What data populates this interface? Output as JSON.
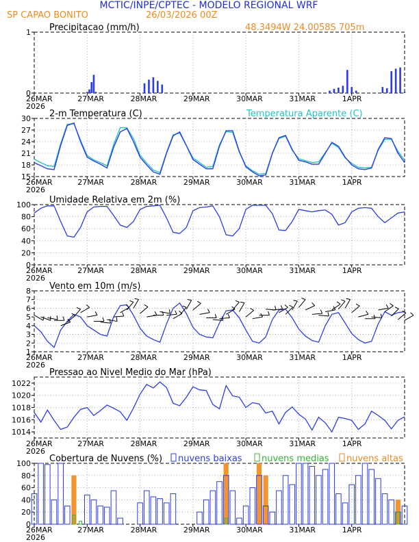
{
  "header": {
    "title": "MCTIC/INPE/CPTEC - MODELO REGIONAL WRF",
    "location": "SP CAPAO BONITO",
    "run": "26/03/2026 00Z",
    "coords": "48.3494W 24.0058S 705m"
  },
  "colors": {
    "title": "#1e2fd6",
    "orange": "#f08a1e",
    "blue": "#2a3bea",
    "cyan": "#21c4c4",
    "green": "#2fb82f",
    "grid": "#9a9a9a",
    "frame": "#000000"
  },
  "time_axis": {
    "labels": [
      "26MAR\n2026",
      "27MAR",
      "28MAR",
      "29MAR",
      "30MAR",
      "31MAR",
      "1APR"
    ],
    "days": 7
  },
  "panels": [
    {
      "id": "precip",
      "title": "Precipitacao (mm/h)",
      "right_label": "48.3494W 24.0058S 705m",
      "ymin": 0,
      "ymax": 1,
      "yticks": [
        "1",
        "0"
      ],
      "ytick_values": [
        1,
        0
      ],
      "legend": []
    },
    {
      "id": "temp",
      "title": "2-m Temperatura (C)",
      "right_label": "Temperatura Aparente (C)",
      "ymin": 15,
      "ymax": 30,
      "yticks": [
        "30",
        "27",
        "24",
        "21",
        "18",
        "15"
      ],
      "ytick_values": [
        30,
        27,
        24,
        21,
        18,
        15
      ],
      "legend": []
    },
    {
      "id": "rh",
      "title": "Umidade Relativa em 2m (%)",
      "right_label": "",
      "ymin": 0,
      "ymax": 100,
      "yticks": [
        "100",
        "80",
        "60",
        "40",
        "20",
        "0"
      ],
      "ytick_values": [
        100,
        80,
        60,
        40,
        20,
        0
      ],
      "legend": []
    },
    {
      "id": "wind",
      "title": "Vento em 10m (m/s)",
      "right_label": "",
      "ymin": 1,
      "ymax": 8,
      "yticks": [
        "8",
        "7",
        "6",
        "5",
        "4",
        "3",
        "2",
        "1"
      ],
      "ytick_values": [
        8,
        7,
        6,
        5,
        4,
        3,
        2,
        1
      ],
      "legend": []
    },
    {
      "id": "pres",
      "title": "Pressao ao Nivel Medio do Mar (hPa)",
      "right_label": "",
      "ymin": 1013,
      "ymax": 1023,
      "yticks": [
        "1022",
        "1020",
        "1018",
        "1016",
        "1014"
      ],
      "ytick_values": [
        1022,
        1020,
        1018,
        1016,
        1014
      ],
      "legend": []
    },
    {
      "id": "cloud",
      "title": "Cobertura de Nuvens (%)",
      "right_label": "",
      "ymin": 0,
      "ymax": 100,
      "yticks": [
        "100",
        "80",
        "60",
        "40",
        "20",
        "0"
      ],
      "ytick_values": [
        100,
        80,
        60,
        40,
        20,
        0
      ],
      "legend": [
        "nuvens baixas",
        "nuvens medias",
        "nuvens altas"
      ]
    }
  ],
  "chart_data": {
    "type": "meteogram",
    "title": "MCTIC/INPE/CPTEC - MODELO REGIONAL WRF",
    "subtitle": "SP CAPAO BONITO 26/03/2026 00Z",
    "time_unit": "hours since 26MAR2026 00Z",
    "hours": [
      0,
      3,
      6,
      9,
      12,
      15,
      18,
      21,
      24,
      27,
      30,
      33,
      36,
      39,
      42,
      45,
      48,
      51,
      54,
      57,
      60,
      63,
      66,
      69,
      72,
      75,
      78,
      81,
      84,
      87,
      90,
      93,
      96,
      99,
      102,
      105,
      108,
      111,
      114,
      117,
      120,
      123,
      126,
      129,
      132,
      135,
      138,
      141,
      144,
      147,
      150,
      153,
      156,
      159,
      162,
      165,
      168
    ],
    "precipitation_mm_h": {
      "hours": [
        10,
        12,
        14,
        16,
        18,
        20,
        22,
        24,
        25,
        26,
        27,
        28,
        29,
        30,
        31,
        32,
        34,
        36,
        38,
        40,
        42,
        44,
        46,
        48,
        50,
        52,
        54,
        56,
        58,
        60,
        62,
        64,
        66,
        68,
        70,
        72,
        74,
        76,
        78,
        80,
        82,
        84,
        86,
        88,
        90,
        92,
        94,
        96,
        98,
        100,
        102,
        104,
        106,
        108,
        110,
        112,
        114,
        116,
        118,
        120,
        122,
        124,
        126,
        128,
        130,
        132,
        134,
        136,
        138,
        140,
        142,
        144,
        146,
        148,
        150,
        152,
        154,
        156,
        158,
        160,
        162,
        164,
        166,
        168
      ],
      "values": [
        0,
        0,
        0,
        0,
        0,
        0,
        0,
        0.02,
        0.06,
        0.18,
        0.3,
        0.02,
        0,
        0,
        0,
        0,
        0,
        0,
        0,
        0,
        0,
        0,
        0,
        0,
        0.16,
        0.22,
        0.26,
        0.2,
        0.14,
        0,
        0,
        0,
        0,
        0,
        0,
        0,
        0,
        0,
        0,
        0,
        0,
        0,
        0,
        0,
        0,
        0,
        0,
        0,
        0,
        0,
        0,
        0,
        0,
        0,
        0,
        0,
        0,
        0,
        0,
        0,
        0,
        0,
        0,
        0,
        0,
        0,
        0.04,
        0.07,
        0.09,
        0.12,
        0.38,
        0.1,
        0.04,
        0,
        0,
        0,
        0,
        0,
        0.1,
        0.08,
        0.36,
        0.4,
        0.42,
        0.02
      ]
    },
    "temperature_c": [
      18.6,
      17.8,
      17.0,
      16.8,
      23.0,
      28.2,
      28.8,
      24.0,
      20.0,
      19.0,
      18.2,
      17.2,
      22.5,
      26.5,
      27.4,
      24.0,
      20.0,
      18.0,
      16.2,
      15.6,
      21.0,
      25.5,
      26.5,
      23.0,
      19.4,
      18.2,
      17.0,
      17.0,
      22.8,
      26.8,
      26.8,
      21.5,
      17.5,
      16.2,
      15.2,
      15.4,
      21.0,
      25.0,
      25.6,
      22.0,
      19.2,
      18.8,
      18.2,
      18.2,
      21.0,
      23.8,
      22.8,
      20.0,
      18.0,
      17.0,
      16.8,
      17.2,
      22.0,
      25.0,
      24.8,
      21.0,
      18.6
    ],
    "apparent_temperature_c": [
      19.5,
      18.6,
      17.8,
      17.6,
      23.5,
      28.5,
      28.6,
      24.4,
      20.4,
      19.3,
      18.6,
      17.8,
      23.2,
      27.6,
      27.6,
      24.8,
      20.5,
      18.5,
      16.7,
      16.0,
      21.2,
      25.8,
      26.2,
      23.0,
      19.8,
      18.6,
      17.4,
      17.6,
      23.2,
      26.6,
      26.4,
      21.3,
      17.8,
      16.5,
      15.6,
      15.8,
      21.0,
      24.8,
      25.4,
      21.8,
      19.6,
      19.1,
      18.6,
      18.8,
      21.2,
      23.6,
      22.5,
      19.8,
      18.4,
      17.4,
      17.2,
      17.4,
      21.8,
      24.6,
      24.6,
      21.5,
      19.2
    ],
    "relative_humidity_pct": [
      86,
      94,
      98,
      98,
      72,
      48,
      46,
      62,
      88,
      96,
      97,
      97,
      82,
      66,
      62,
      72,
      92,
      97,
      98,
      99,
      78,
      54,
      52,
      62,
      90,
      95,
      96,
      98,
      80,
      50,
      48,
      60,
      92,
      99,
      99,
      99,
      85,
      58,
      57,
      72,
      92,
      90,
      88,
      90,
      91,
      84,
      66,
      70,
      88,
      94,
      95,
      94,
      80,
      70,
      78,
      86,
      88
    ],
    "wind_speed_m_s": [
      4.0,
      3.3,
      2.2,
      1.5,
      3.5,
      4.5,
      5.3,
      5.0,
      4.0,
      3.5,
      3.0,
      2.8,
      5.0,
      6.3,
      6.4,
      5.2,
      3.7,
      2.8,
      2.4,
      2.1,
      4.2,
      6.0,
      6.6,
      5.4,
      3.8,
      3.0,
      2.7,
      2.6,
      4.3,
      5.7,
      5.8,
      4.9,
      3.5,
      2.2,
      2.0,
      2.7,
      4.7,
      5.8,
      5.9,
      4.9,
      3.6,
      2.8,
      2.3,
      2.1,
      4.0,
      5.3,
      5.5,
      4.3,
      3.1,
      2.4,
      2.0,
      2.2,
      4.2,
      5.6,
      5.2,
      5.5,
      5.6
    ],
    "wind_barb_y_m_s": [
      5.2,
      5.0,
      4.9,
      4.6,
      4.0,
      4.4,
      5.0,
      5.5,
      5.0,
      4.5,
      4.4,
      4.7,
      5.0,
      5.5,
      5.8,
      6.0,
      5.4,
      5.0,
      5.2,
      5.6,
      5.2,
      4.8,
      5.2,
      5.9,
      5.8,
      5.3,
      4.9,
      4.7,
      4.8,
      5.3,
      5.8,
      5.6,
      5.0,
      4.8,
      5.2,
      5.9,
      5.8,
      5.5,
      5.3,
      5.8,
      6.1,
      5.8,
      5.3,
      5.2,
      5.6,
      5.8,
      5.9,
      6.0,
      5.5,
      5.0,
      4.8,
      5.0,
      5.8,
      5.6,
      5.1,
      4.7,
      4.6
    ],
    "wind_direction_deg": [
      60,
      70,
      80,
      90,
      110,
      130,
      140,
      120,
      100,
      90,
      85,
      80,
      95,
      120,
      140,
      150,
      130,
      100,
      90,
      80,
      95,
      120,
      140,
      150,
      130,
      100,
      90,
      85,
      95,
      120,
      140,
      150,
      130,
      100,
      90,
      85,
      95,
      120,
      135,
      150,
      140,
      115,
      95,
      85,
      100,
      125,
      140,
      150,
      130,
      105,
      90,
      85,
      100,
      125,
      135,
      130,
      120
    ],
    "mslp_hpa": [
      1017.2,
      1015.6,
      1017.6,
      1015.9,
      1014.4,
      1014.8,
      1016.4,
      1017.7,
      1018.0,
      1016.7,
      1017.5,
      1018.4,
      1017.9,
      1017.3,
      1015.9,
      1017.9,
      1020.2,
      1021.8,
      1021.2,
      1022.2,
      1021.3,
      1018.7,
      1018.3,
      1019.7,
      1021.4,
      1020.9,
      1020.8,
      1018.5,
      1017.8,
      1021.6,
      1019.9,
      1019.7,
      1018.0,
      1018.8,
      1018.6,
      1017.1,
      1017.4,
      1015.3,
      1017.2,
      1018.1,
      1016.9,
      1016.1,
      1014.3,
      1016.4,
      1015.5,
      1014.0,
      1016.4,
      1016.2,
      1015.9,
      1014.4,
      1015.3,
      1017.4,
      1016.7,
      1015.9,
      1014.5,
      1015.9,
      1016.5
    ],
    "cloud_cover_pct": {
      "low_clouds": [
        50,
        100,
        98,
        40,
        100,
        30,
        0,
        0,
        48,
        40,
        30,
        28,
        55,
        10,
        0,
        0,
        35,
        55,
        45,
        42,
        35,
        50,
        0,
        0,
        0,
        20,
        40,
        55,
        70,
        80,
        55,
        10,
        30,
        60,
        80,
        30,
        20,
        55,
        80,
        65,
        100,
        100,
        95,
        80,
        90,
        100,
        50,
        35,
        65,
        80,
        100,
        90,
        75,
        50,
        40,
        20,
        30
      ],
      "medium_clouds": [
        0,
        0,
        0,
        0,
        0,
        0,
        15,
        5,
        0,
        0,
        0,
        0,
        0,
        0,
        0,
        0,
        0,
        0,
        0,
        0,
        0,
        0,
        0,
        0,
        0,
        0,
        0,
        0,
        0,
        10,
        0,
        0,
        0,
        0,
        0,
        0,
        0,
        0,
        0,
        0,
        0,
        0,
        0,
        0,
        0,
        0,
        0,
        0,
        0,
        0,
        0,
        0,
        0,
        0,
        0,
        20,
        0
      ],
      "high_clouds": [
        0,
        0,
        0,
        0,
        0,
        0,
        80,
        0,
        0,
        0,
        0,
        0,
        0,
        0,
        0,
        0,
        0,
        0,
        0,
        0,
        0,
        0,
        0,
        0,
        0,
        0,
        0,
        0,
        0,
        100,
        0,
        0,
        0,
        0,
        100,
        80,
        0,
        0,
        0,
        0,
        0,
        0,
        0,
        0,
        0,
        0,
        0,
        0,
        0,
        0,
        0,
        0,
        0,
        0,
        0,
        40,
        0
      ]
    }
  }
}
